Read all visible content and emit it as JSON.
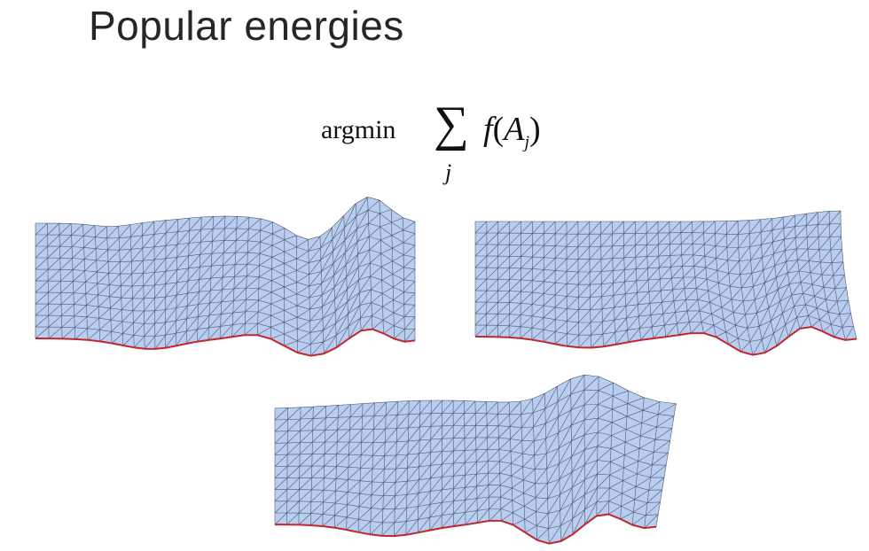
{
  "title": "Popular energies",
  "formula": {
    "operator": "argmin",
    "sum_symbol": "∑",
    "index": "j",
    "function": "f",
    "argument": "A",
    "argument_subscript": "j"
  },
  "colors": {
    "mesh_fill": "#b9cdf0",
    "mesh_edge": "#4f5a70",
    "boundary": "#c0282d",
    "title_text": "#262626"
  }
}
